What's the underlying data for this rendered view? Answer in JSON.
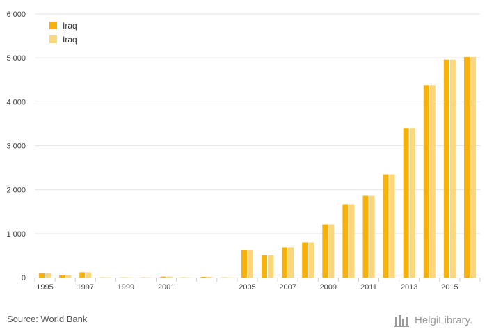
{
  "chart_data": {
    "type": "bar",
    "categories": [
      "1995",
      "1996",
      "1997",
      "1998",
      "1999",
      "2000",
      "2001",
      "2002",
      "2003",
      "2004",
      "2005",
      "2006",
      "2007",
      "2008",
      "2009",
      "2010",
      "2011",
      "2012",
      "2013",
      "2014",
      "2015",
      "2016"
    ],
    "x_tick_labels": [
      "1995",
      "1997",
      "1999",
      "2001",
      "2005",
      "2007",
      "2009",
      "2011",
      "2013",
      "2015"
    ],
    "y_ticks": [
      0,
      1000,
      2000,
      3000,
      4000,
      5000,
      6000
    ],
    "y_tick_labels": [
      "0",
      "1 000",
      "2 000",
      "3 000",
      "4 000",
      "5 000",
      "6 000"
    ],
    "ylim": [
      0,
      6000
    ],
    "grid": true,
    "legend_position": "top-left",
    "series": [
      {
        "name": "Iraq",
        "color": "#f6b10b",
        "values": [
          100,
          55,
          120,
          5,
          5,
          5,
          20,
          5,
          15,
          5,
          620,
          510,
          690,
          800,
          1210,
          1670,
          1860,
          2350,
          3400,
          4380,
          4960,
          5020
        ]
      },
      {
        "name": "Iraq",
        "color": "#fcd67a",
        "values": [
          100,
          55,
          120,
          5,
          5,
          5,
          20,
          5,
          15,
          5,
          620,
          510,
          690,
          800,
          1210,
          1670,
          1860,
          2350,
          3400,
          4380,
          4960,
          5020
        ]
      }
    ]
  },
  "footer": {
    "source": "Source: World Bank",
    "logo_text": "HelgiLibrary."
  }
}
